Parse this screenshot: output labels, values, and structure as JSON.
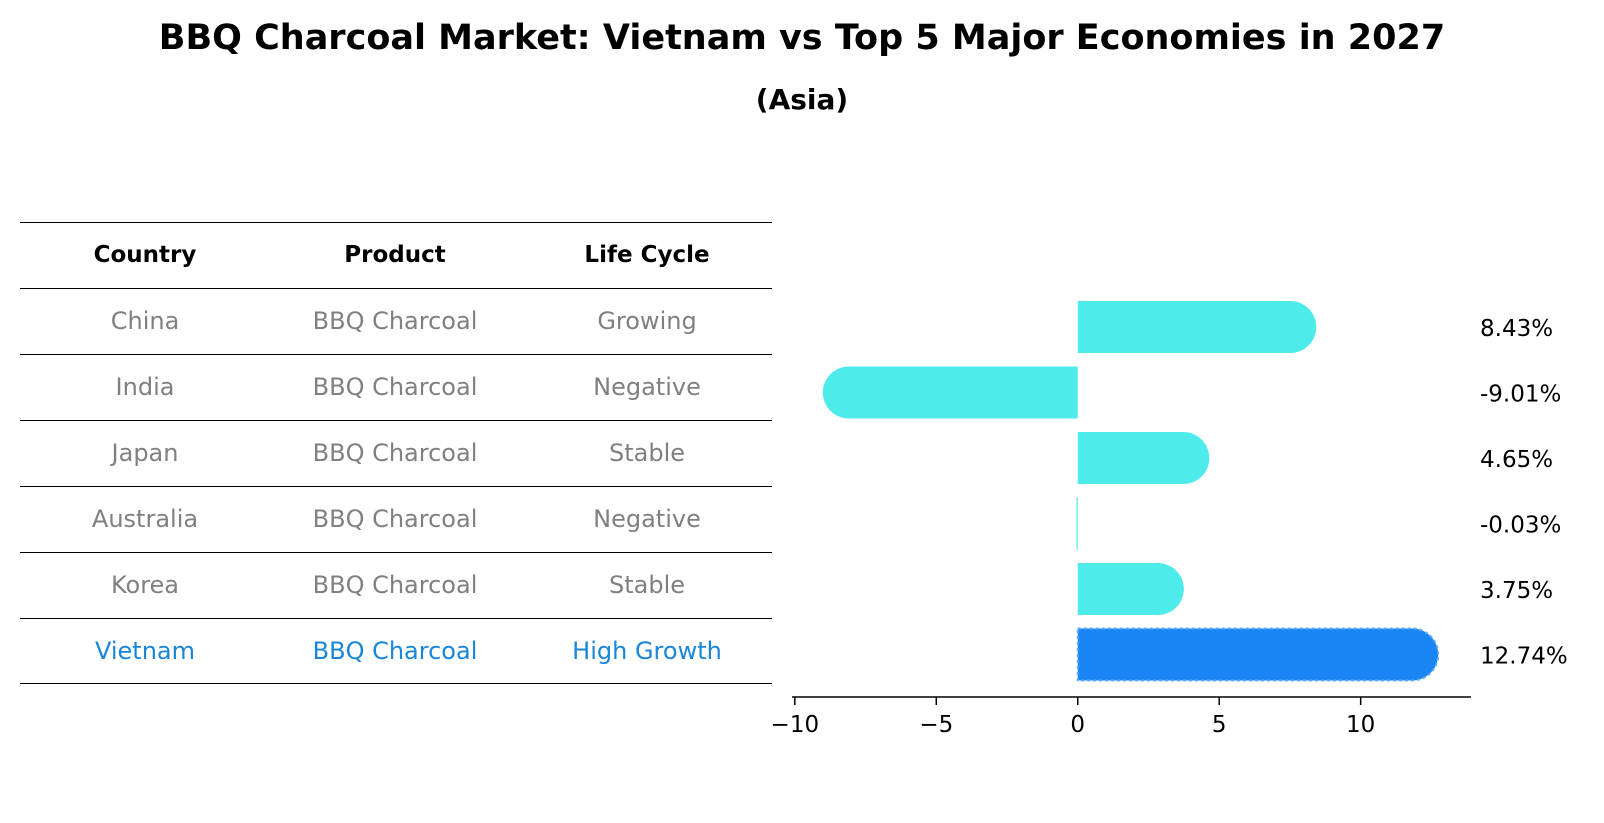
{
  "title": "BBQ Charcoal Market: Vietnam vs Top 5 Major Economies in 2027",
  "subtitle": "(Asia)",
  "table": {
    "headers": [
      "Country",
      "Product",
      "Life Cycle"
    ],
    "rows": [
      [
        "China",
        "BBQ Charcoal",
        "Growing"
      ],
      [
        "India",
        "BBQ Charcoal",
        "Negative"
      ],
      [
        "Japan",
        "BBQ Charcoal",
        "Stable"
      ],
      [
        "Australia",
        "BBQ Charcoal",
        "Negative"
      ],
      [
        "Korea",
        "BBQ Charcoal",
        "Stable"
      ],
      [
        "Vietnam",
        "BBQ Charcoal",
        "High Growth"
      ]
    ]
  },
  "chart_data": {
    "type": "bar",
    "orientation": "horizontal",
    "categories": [
      "China",
      "India",
      "Japan",
      "Australia",
      "Korea",
      "Vietnam"
    ],
    "values": [
      8.43,
      -9.01,
      4.65,
      -0.03,
      3.75,
      12.74
    ],
    "value_labels": [
      "8.43%",
      "-9.01%",
      "4.65%",
      "-0.03%",
      "3.75%",
      "12.74%"
    ],
    "highlight": "Vietnam",
    "xlim": [
      -10.1,
      13.9
    ],
    "xticks": [
      -10,
      -5,
      0,
      5,
      10
    ],
    "xtick_labels": [
      "−10",
      "−5",
      "0",
      "5",
      "10"
    ],
    "grid": false,
    "colors": {
      "default": "#4deceb",
      "highlight": "#1a86f3",
      "highlight_text": "#1a86d8",
      "muted_text": "#808080"
    }
  }
}
